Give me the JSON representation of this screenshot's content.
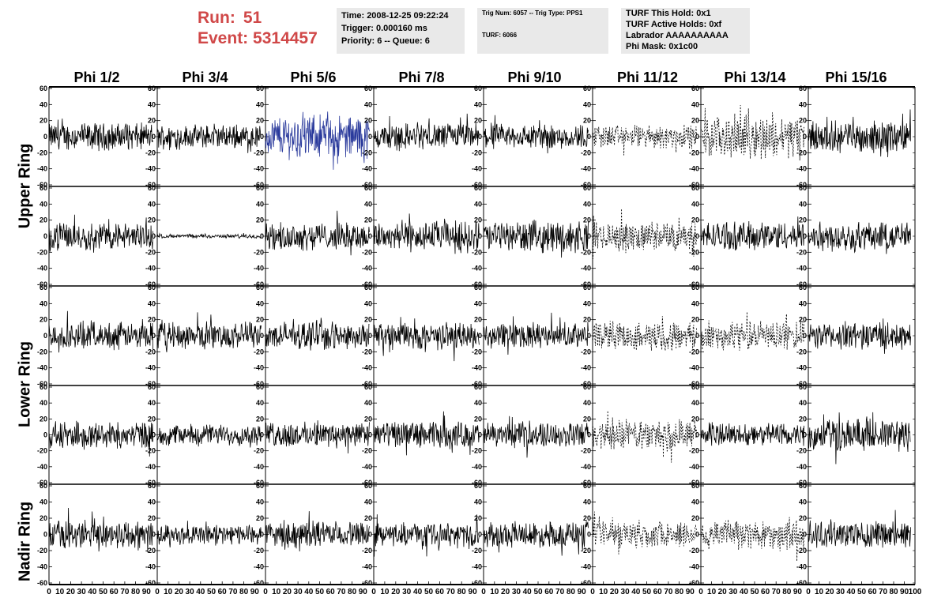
{
  "header": {
    "run_label": "Run:",
    "run_value": "51",
    "event_label": "Event:",
    "event_value": "5314457",
    "time_line": "Time: 2008-12-25 09:22:24",
    "trigger_line": "Trigger: 0.000160 ms",
    "priority_line": "Priority: 6 -- Queue: 6",
    "trig_line": "Trig Num: 6057 -- Trig Type: PPS1",
    "turf_line": "TURF: 6066",
    "turf_hold": "TURF This Hold: 0x1",
    "turf_active": "TURF Active Holds: 0xf",
    "labrador": "Labrador AAAAAAAAAA",
    "phi_mask": "Phi Mask: 0x1c00",
    "colors": {
      "run_text": "#d04848",
      "box_bg": "#e9e9e9"
    }
  },
  "columns": [
    "Phi 1/2",
    "Phi 3/4",
    "Phi 5/6",
    "Phi 7/8",
    "Phi 9/10",
    "Phi 11/12",
    "Phi 13/14",
    "Phi 15/16"
  ],
  "rings": [
    {
      "label": "Upper Ring",
      "rows": [
        0,
        1
      ]
    },
    {
      "label": "Lower Ring",
      "rows": [
        2,
        3
      ]
    },
    {
      "label": "Nadir Ring",
      "rows": [
        4
      ]
    }
  ],
  "chart_data": {
    "type": "line",
    "rows": 5,
    "cols": 8,
    "xlim": [
      0,
      100
    ],
    "ylim": [
      -60,
      60
    ],
    "y_ticks": [
      -60,
      -40,
      -20,
      0,
      20,
      40,
      60
    ],
    "x_ticks": [
      0,
      10,
      20,
      30,
      40,
      50,
      60,
      70,
      80,
      90,
      100
    ],
    "trace_colors": {
      "normal": "#000000",
      "highlight": "#2a3a9c"
    },
    "panels": [
      [
        {
          "amp": 14,
          "style": "solid"
        },
        {
          "amp": 12,
          "style": "solid"
        },
        {
          "amp": 22,
          "style": "solid",
          "color": "highlight"
        },
        {
          "amp": 14,
          "style": "solid"
        },
        {
          "amp": 13,
          "style": "solid"
        },
        {
          "amp": 12,
          "style": "dotted"
        },
        {
          "amp": 22,
          "style": "dotted"
        },
        {
          "amp": 16,
          "style": "solid"
        }
      ],
      [
        {
          "amp": 14,
          "style": "solid"
        },
        {
          "amp": 2,
          "style": "solid"
        },
        {
          "amp": 14,
          "style": "solid"
        },
        {
          "amp": 16,
          "style": "solid"
        },
        {
          "amp": 16,
          "style": "solid"
        },
        {
          "amp": 15,
          "style": "dotted"
        },
        {
          "amp": 15,
          "style": "solid"
        },
        {
          "amp": 15,
          "style": "solid"
        }
      ],
      [
        {
          "amp": 14,
          "style": "solid"
        },
        {
          "amp": 14,
          "style": "solid"
        },
        {
          "amp": 14,
          "style": "solid"
        },
        {
          "amp": 14,
          "style": "solid"
        },
        {
          "amp": 13,
          "style": "solid"
        },
        {
          "amp": 15,
          "style": "dotted"
        },
        {
          "amp": 15,
          "style": "dotted"
        },
        {
          "amp": 14,
          "style": "solid"
        }
      ],
      [
        {
          "amp": 14,
          "style": "solid"
        },
        {
          "amp": 11,
          "style": "solid"
        },
        {
          "amp": 13,
          "style": "solid"
        },
        {
          "amp": 14,
          "style": "solid"
        },
        {
          "amp": 13,
          "style": "solid"
        },
        {
          "amp": 16,
          "style": "dotted"
        },
        {
          "amp": 12,
          "style": "solid"
        },
        {
          "amp": 17,
          "style": "solid"
        }
      ],
      [
        {
          "amp": 15,
          "style": "solid"
        },
        {
          "amp": 10,
          "style": "solid"
        },
        {
          "amp": 13,
          "style": "solid"
        },
        {
          "amp": 12,
          "style": "solid"
        },
        {
          "amp": 13,
          "style": "solid"
        },
        {
          "amp": 14,
          "style": "dotted"
        },
        {
          "amp": 16,
          "style": "dotted"
        },
        {
          "amp": 14,
          "style": "solid"
        }
      ]
    ]
  }
}
